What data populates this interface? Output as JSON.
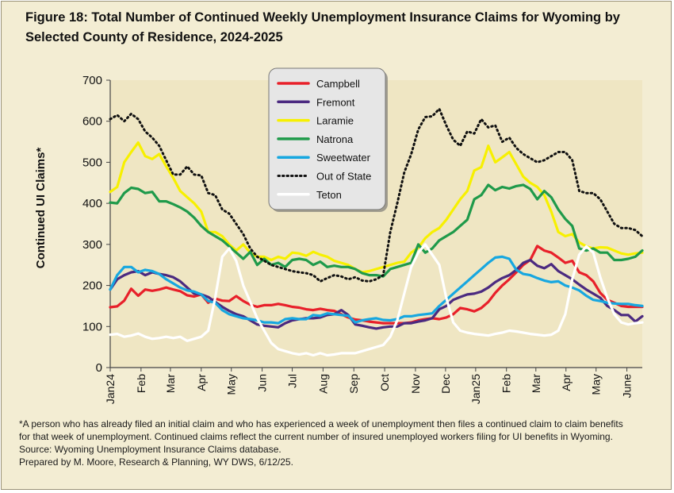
{
  "figure": {
    "title_line1": "Figure 18: Total Number of Continued Weekly Unemployment Insurance Claims for Wyoming by",
    "title_line2": "Selected County of Residence, 2024-2025",
    "footnote_line1": "*A person who has already filed an initial claim and who has experienced a week of unemployment then files a continued claim to claim benefits",
    "footnote_line2": "for that week of unemployment. Continued claims reflect the current number of insured unemployed workers filing for UI benefits in Wyoming.",
    "source": "Source: Wyoming Unemployment Insurance Claims database.",
    "prepared_by": "Prepared by M. Moore, Research & Planning, WY DWS, 6/12/25."
  },
  "chart_data": {
    "type": "line",
    "title": "Figure 18: Total Number of Continued Weekly Unemployment Insurance Claims for Wyoming by Selected County of Residence, 2024-2025",
    "xlabel": "",
    "ylabel": "Continued UI Claims*",
    "ylim": [
      0,
      700
    ],
    "yticks": [
      0,
      100,
      200,
      300,
      400,
      500,
      600,
      700
    ],
    "x_range": [
      0,
      76
    ],
    "x_unit": "week",
    "xticks": [
      {
        "label": "Jan24",
        "x": 0
      },
      {
        "label": "Feb",
        "x": 4.4
      },
      {
        "label": "Mar",
        "x": 8.6
      },
      {
        "label": "Apr",
        "x": 13
      },
      {
        "label": "May",
        "x": 17.3
      },
      {
        "label": "Jun",
        "x": 21.7
      },
      {
        "label": "Jul",
        "x": 26
      },
      {
        "label": "Aug",
        "x": 30.4
      },
      {
        "label": "Sep",
        "x": 34.8
      },
      {
        "label": "Oct",
        "x": 39.2
      },
      {
        "label": "Nov",
        "x": 43.6
      },
      {
        "label": "Dec",
        "x": 47.9
      },
      {
        "label": "Jan25",
        "x": 52.2
      },
      {
        "label": "Feb",
        "x": 56.6
      },
      {
        "label": "Mar",
        "x": 60.8
      },
      {
        "label": "Apr",
        "x": 65.1
      },
      {
        "label": "May",
        "x": 69.4
      },
      {
        "label": "June",
        "x": 73.8
      }
    ],
    "grid": false,
    "legend_position": "top-center",
    "series": [
      {
        "name": "Campbell",
        "color": "#e8202a",
        "style": "solid",
        "values": [
          147,
          149,
          163,
          192,
          175,
          190,
          187,
          190,
          195,
          190,
          186,
          176,
          173,
          178,
          158,
          168,
          163,
          162,
          174,
          162,
          153,
          148,
          152,
          152,
          155,
          152,
          148,
          146,
          142,
          140,
          143,
          140,
          138,
          130,
          122,
          117,
          115,
          112,
          110,
          108,
          108,
          108,
          108,
          110,
          115,
          118,
          120,
          118,
          122,
          130,
          145,
          142,
          137,
          145,
          160,
          182,
          200,
          215,
          232,
          250,
          262,
          296,
          285,
          280,
          268,
          255,
          260,
          232,
          225,
          210,
          182,
          165,
          158,
          150,
          148,
          148,
          148
        ]
      },
      {
        "name": "Fremont",
        "color": "#4b2a80",
        "style": "solid",
        "values": [
          190,
          215,
          225,
          232,
          235,
          225,
          232,
          228,
          225,
          220,
          210,
          195,
          180,
          178,
          172,
          160,
          148,
          138,
          130,
          125,
          115,
          105,
          102,
          100,
          98,
          108,
          115,
          118,
          120,
          120,
          122,
          128,
          130,
          140,
          128,
          105,
          102,
          98,
          95,
          98,
          100,
          100,
          108,
          108,
          112,
          115,
          120,
          142,
          150,
          165,
          172,
          178,
          180,
          185,
          195,
          208,
          218,
          225,
          238,
          255,
          262,
          248,
          242,
          252,
          235,
          225,
          215,
          202,
          190,
          180,
          170,
          150,
          140,
          128,
          128,
          112,
          125
        ]
      },
      {
        "name": "Laramie",
        "color": "#f7f000",
        "style": "solid",
        "values": [
          428,
          440,
          500,
          525,
          548,
          515,
          508,
          520,
          490,
          462,
          430,
          415,
          400,
          380,
          330,
          330,
          320,
          300,
          285,
          300,
          280,
          270,
          270,
          262,
          270,
          265,
          280,
          278,
          272,
          282,
          275,
          270,
          260,
          255,
          250,
          240,
          232,
          235,
          240,
          245,
          250,
          255,
          258,
          280,
          292,
          315,
          330,
          340,
          360,
          385,
          410,
          430,
          480,
          488,
          540,
          500,
          512,
          525,
          495,
          465,
          450,
          440,
          420,
          380,
          330,
          320,
          325,
          305,
          295,
          290,
          293,
          292,
          285,
          278,
          275,
          278,
          280
        ]
      },
      {
        "name": "Natrona",
        "color": "#1f9a4a",
        "style": "solid",
        "values": [
          402,
          400,
          425,
          438,
          435,
          425,
          428,
          405,
          405,
          398,
          390,
          380,
          365,
          345,
          330,
          320,
          310,
          295,
          280,
          265,
          282,
          250,
          265,
          250,
          255,
          245,
          262,
          265,
          262,
          250,
          258,
          245,
          248,
          245,
          245,
          240,
          230,
          225,
          225,
          222,
          240,
          245,
          250,
          255,
          300,
          280,
          290,
          310,
          320,
          330,
          345,
          360,
          410,
          420,
          445,
          432,
          440,
          436,
          442,
          445,
          435,
          410,
          430,
          415,
          385,
          362,
          345,
          290,
          285,
          290,
          280,
          280,
          262,
          262,
          265,
          270,
          285
        ]
      },
      {
        "name": "Sweetwater",
        "color": "#17a7e0",
        "style": "solid",
        "values": [
          190,
          225,
          245,
          245,
          232,
          238,
          235,
          228,
          215,
          205,
          195,
          188,
          185,
          178,
          162,
          158,
          140,
          130,
          125,
          120,
          118,
          115,
          110,
          110,
          108,
          118,
          120,
          118,
          118,
          128,
          126,
          132,
          130,
          128,
          126,
          110,
          115,
          118,
          120,
          116,
          115,
          118,
          125,
          125,
          128,
          130,
          132,
          150,
          165,
          180,
          195,
          210,
          225,
          240,
          255,
          268,
          270,
          265,
          238,
          228,
          225,
          218,
          212,
          208,
          210,
          200,
          195,
          188,
          175,
          165,
          162,
          158,
          156,
          155,
          155,
          152,
          150
        ]
      },
      {
        "name": "Out of State",
        "color": "#111111",
        "style": "dotted",
        "values": [
          605,
          615,
          600,
          618,
          605,
          575,
          560,
          540,
          505,
          470,
          470,
          490,
          470,
          468,
          425,
          420,
          385,
          375,
          350,
          325,
          290,
          270,
          260,
          250,
          245,
          240,
          235,
          232,
          230,
          225,
          210,
          218,
          225,
          222,
          215,
          220,
          212,
          210,
          215,
          225,
          330,
          400,
          475,
          520,
          580,
          610,
          612,
          630,
          590,
          555,
          540,
          575,
          570,
          605,
          585,
          590,
          550,
          560,
          535,
          520,
          510,
          500,
          505,
          515,
          525,
          525,
          505,
          430,
          425,
          425,
          410,
          380,
          350,
          340,
          340,
          335,
          320
        ]
      },
      {
        "name": "Teton",
        "color": "#ffffff",
        "style": "solid",
        "values": [
          80,
          82,
          75,
          78,
          83,
          75,
          70,
          72,
          75,
          72,
          75,
          65,
          70,
          75,
          90,
          170,
          270,
          290,
          260,
          200,
          160,
          120,
          90,
          60,
          45,
          40,
          35,
          32,
          35,
          30,
          35,
          30,
          32,
          35,
          35,
          35,
          40,
          45,
          50,
          55,
          75,
          115,
          180,
          245,
          280,
          300,
          275,
          250,
          170,
          110,
          90,
          85,
          82,
          80,
          78,
          82,
          85,
          90,
          88,
          85,
          82,
          80,
          78,
          80,
          90,
          130,
          215,
          275,
          295,
          280,
          220,
          170,
          130,
          110,
          105,
          108,
          110
        ]
      }
    ]
  }
}
